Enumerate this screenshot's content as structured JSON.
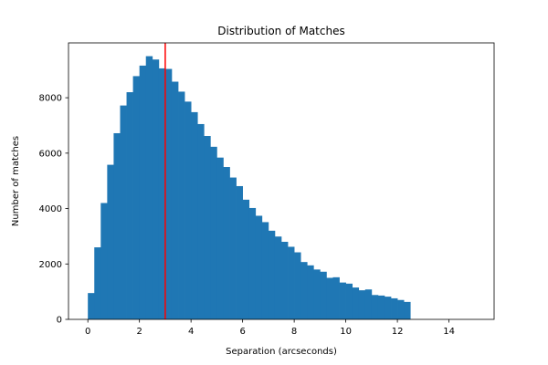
{
  "chart_data": {
    "type": "bar",
    "title": "Distribution of Matches",
    "xlabel": "Separation (arcseconds)",
    "ylabel": "Number of matches",
    "xlim": [
      -0.75,
      15.75
    ],
    "ylim": [
      0,
      9980
    ],
    "x_ticks": [
      0,
      2,
      4,
      6,
      8,
      10,
      12,
      14
    ],
    "y_ticks": [
      0,
      2000,
      4000,
      6000,
      8000
    ],
    "bin_width": 0.25,
    "bin_start": 0,
    "values": [
      950,
      2600,
      4200,
      5580,
      6720,
      7720,
      8200,
      8780,
      9160,
      9500,
      9380,
      9060,
      9040,
      8580,
      8220,
      7860,
      7480,
      7050,
      6620,
      6230,
      5840,
      5500,
      5120,
      4810,
      4320,
      4020,
      3740,
      3510,
      3200,
      2990,
      2800,
      2620,
      2420,
      2070,
      1950,
      1800,
      1720,
      1500,
      1520,
      1330,
      1290,
      1150,
      1050,
      1080,
      880,
      860,
      820,
      760,
      700,
      630
    ],
    "bar_color": "#1f77b4",
    "vline": {
      "x": 3.0,
      "color": "#ff0000"
    },
    "grid": false
  }
}
